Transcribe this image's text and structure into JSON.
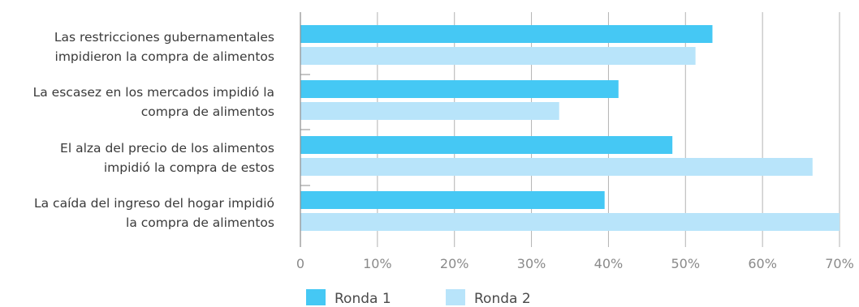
{
  "chart_data": {
    "type": "bar",
    "orientation": "horizontal",
    "categories": [
      [
        "Las restricciones gubernamentales",
        "impidieron la compra de alimentos"
      ],
      [
        "La escasez en los mercados impidió la",
        "compra de alimentos"
      ],
      [
        "El alza del precio de los alimentos",
        "impidió la compra de estos"
      ],
      [
        "La caída del ingreso del hogar impidió",
        "la compra de alimentos"
      ]
    ],
    "series": [
      {
        "name": "Ronda 1",
        "color": "#45c8f4",
        "values": [
          53.5,
          41.3,
          48.3,
          39.5
        ]
      },
      {
        "name": "Ronda 2",
        "color": "#b8e4fa",
        "values": [
          51.3,
          33.6,
          66.5,
          70.0
        ]
      }
    ],
    "x_ticks": [
      "0",
      "10%",
      "20%",
      "30%",
      "40%",
      "50%",
      "60%",
      "70%"
    ],
    "xlim": [
      0,
      70
    ],
    "grid": true,
    "legend_position": "bottom"
  }
}
